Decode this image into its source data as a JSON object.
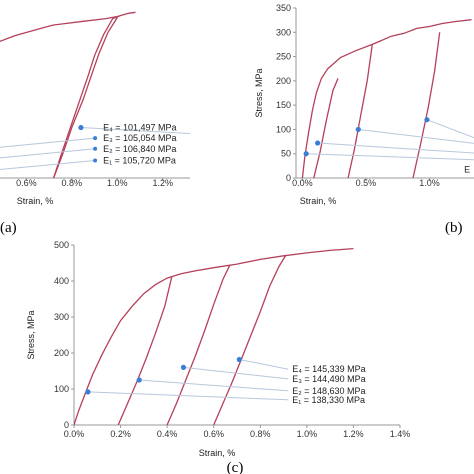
{
  "chart_data": [
    {
      "type": "line",
      "panel_label": "(a)",
      "xlabel": "Strain, %",
      "ylabel": "",
      "x_ticks": [
        "0.6%",
        "0.8%",
        "1.0%",
        "1.2%"
      ],
      "xlim": [
        0.44,
        1.32
      ],
      "y_ticks": [],
      "ylim": [
        0,
        320
      ],
      "series": [
        {
          "x": [
            0.44,
            0.55,
            0.65,
            0.7,
            0.72,
            0.76
          ],
          "y": [
            250,
            268,
            280,
            286,
            288,
            290
          ]
        },
        {
          "x": [
            0.44,
            0.48
          ],
          "y": [
            118,
            150
          ]
        },
        {
          "x": [
            0.72,
            0.75,
            0.79,
            0.83,
            0.87,
            0.9,
            0.94,
            0.98,
            1.01
          ],
          "y": [
            0,
            40,
            90,
            140,
            190,
            230,
            270,
            300,
            305
          ]
        },
        {
          "x": [
            0.72,
            0.76,
            0.8,
            0.85,
            0.89,
            0.92,
            0.96,
            1.0
          ],
          "y": [
            0,
            45,
            95,
            148,
            198,
            235,
            275,
            302
          ]
        },
        {
          "x": [
            0.76,
            0.85,
            0.95,
            1.0,
            1.05,
            1.08
          ],
          "y": [
            290,
            295,
            300,
            304,
            310,
            312
          ]
        }
      ],
      "markers": [
        {
          "x": 0.84,
          "y": 95
        }
      ],
      "annotations": [
        {
          "text": "E₄ = 101,497 MPa",
          "x": 0.92,
          "y": 95
        },
        {
          "text": "E₃ = 105,054 MPa",
          "x": 0.92,
          "y": 75
        },
        {
          "text": "E₂ = 106,840 MPa",
          "x": 0.92,
          "y": 55
        },
        {
          "text": "E₁ = 105,720 MPa",
          "x": 0.92,
          "y": 33
        }
      ],
      "color": "#b5405a",
      "marker_color": "#3a7fd5"
    },
    {
      "type": "line",
      "panel_label": "(b)",
      "xlabel": "Strain, %",
      "ylabel": "Stress, MPa",
      "x_ticks": [
        "0.0%",
        "0.5%",
        "1.0%"
      ],
      "xlim": [
        -0.05,
        1.35
      ],
      "y_ticks": [
        "0",
        "50",
        "100",
        "150",
        "200",
        "250",
        "300",
        "350"
      ],
      "ylim": [
        0,
        350
      ],
      "series": [
        {
          "x": [
            0.0,
            0.02,
            0.05,
            0.08,
            0.11,
            0.15,
            0.2,
            0.3,
            0.42,
            0.55,
            0.7,
            0.8,
            0.9,
            1.0,
            1.1,
            1.2,
            1.33
          ],
          "y": [
            0,
            45,
            95,
            140,
            175,
            205,
            225,
            248,
            262,
            275,
            292,
            298,
            308,
            312,
            318,
            322,
            326
          ]
        },
        {
          "x": [
            0.09,
            0.14,
            0.19,
            0.24,
            0.28
          ],
          "y": [
            0,
            55,
            120,
            180,
            205
          ]
        },
        {
          "x": [
            0.36,
            0.41,
            0.46,
            0.51,
            0.55
          ],
          "y": [
            0,
            60,
            130,
            200,
            275
          ]
        },
        {
          "x": [
            0.87,
            0.93,
            0.99,
            1.04,
            1.08
          ],
          "y": [
            0,
            70,
            145,
            220,
            300
          ]
        }
      ],
      "markers": [
        {
          "x": 0.03,
          "y": 50
        },
        {
          "x": 0.12,
          "y": 72
        },
        {
          "x": 0.44,
          "y": 100
        },
        {
          "x": 0.98,
          "y": 120
        }
      ],
      "annotations": [
        {
          "text": "E",
          "x": 1.32,
          "y": 18
        }
      ],
      "color": "#b5405a",
      "marker_color": "#3a7fd5"
    },
    {
      "type": "line",
      "panel_label": "(c)",
      "xlabel": "Strain, %",
      "ylabel": "Stress, MPa",
      "x_ticks": [
        "0.0%",
        "0.2%",
        "0.4%",
        "0.6%",
        "0.8%",
        "1.0%",
        "1.2%",
        "1.4%"
      ],
      "xlim": [
        0,
        1.4
      ],
      "y_ticks": [
        "0",
        "100",
        "200",
        "300",
        "400",
        "500"
      ],
      "ylim": [
        0,
        500
      ],
      "series": [
        {
          "x": [
            0.0,
            0.02,
            0.05,
            0.08,
            0.12,
            0.16,
            0.2,
            0.25,
            0.3,
            0.35,
            0.4,
            0.46,
            0.52,
            0.6,
            0.7,
            0.8,
            0.9,
            1.0,
            1.1,
            1.2
          ],
          "y": [
            0,
            40,
            90,
            140,
            195,
            245,
            290,
            330,
            365,
            390,
            408,
            420,
            428,
            437,
            447,
            460,
            470,
            478,
            485,
            490
          ]
        },
        {
          "x": [
            0.19,
            0.23,
            0.27,
            0.31,
            0.35,
            0.39,
            0.42
          ],
          "y": [
            0,
            60,
            120,
            185,
            255,
            330,
            412
          ]
        },
        {
          "x": [
            0.4,
            0.44,
            0.48,
            0.52,
            0.56,
            0.6,
            0.64,
            0.67
          ],
          "y": [
            0,
            60,
            125,
            190,
            260,
            335,
            405,
            445
          ]
        },
        {
          "x": [
            0.6,
            0.64,
            0.68,
            0.72,
            0.76,
            0.8,
            0.84,
            0.88,
            0.91
          ],
          "y": [
            0,
            60,
            120,
            185,
            250,
            315,
            385,
            440,
            472
          ]
        }
      ],
      "markers": [
        {
          "x": 0.06,
          "y": 92
        },
        {
          "x": 0.28,
          "y": 125
        },
        {
          "x": 0.47,
          "y": 160
        },
        {
          "x": 0.71,
          "y": 182
        }
      ],
      "annotations": [
        {
          "text": "E₄ = 145,339 MPa",
          "x": 0.92,
          "y": 155
        },
        {
          "text": "E₃ = 144,490 MPa",
          "x": 0.92,
          "y": 128
        },
        {
          "text": "E₂ = 148,630 MPa",
          "x": 0.92,
          "y": 95
        },
        {
          "text": "E₁ = 138,330 MPa",
          "x": 0.92,
          "y": 70
        }
      ],
      "color": "#b5405a",
      "marker_color": "#3a7fd5"
    }
  ]
}
